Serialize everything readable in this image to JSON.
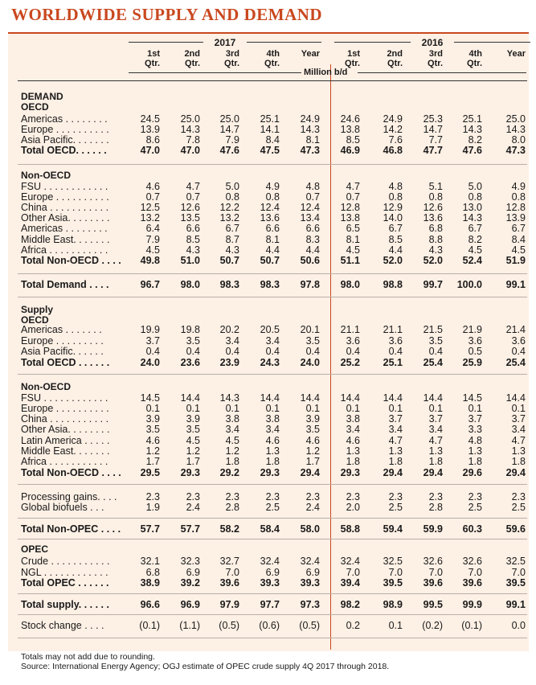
{
  "title": "WORLDWIDE SUPPLY AND DEMAND",
  "headers": {
    "year_2017": "2017",
    "year_2016": "2016",
    "unit": "Million b/d",
    "quarters": [
      "1st\nQtr.",
      "2nd\nQtr.",
      "3rd\nQtr.",
      "4th\nQtr.",
      "Year"
    ]
  },
  "sections": {
    "demand": "DEMAND",
    "oecd": "OECD",
    "non_oecd": "Non-OECD",
    "supply": "Supply",
    "supply_oecd": "OECD",
    "supply_non_oecd": "Non-OECD",
    "opec": "OPEC"
  },
  "rows": [
    {
      "label": "Americas . . . . . . . .",
      "values": [
        "24.5",
        "25.0",
        "25.0",
        "25.1",
        "24.9",
        "24.6",
        "24.9",
        "25.3",
        "25.1",
        "25.0"
      ],
      "bold": false
    },
    {
      "label": "Europe . . . . . . . . . .",
      "values": [
        "13.9",
        "14.3",
        "14.7",
        "14.1",
        "14.3",
        "13.8",
        "14.2",
        "14.7",
        "14.3",
        "14.3"
      ],
      "bold": false
    },
    {
      "label": "Asia Pacific. . . . . . .",
      "values": [
        "8.6",
        "7.8",
        "7.9",
        "8.4",
        "8.1",
        "8.5",
        "7.6",
        "7.7",
        "8.2",
        "8.0"
      ],
      "bold": false
    },
    {
      "label": "Total OECD. . . . . .",
      "values": [
        "47.0",
        "47.0",
        "47.6",
        "47.5",
        "47.3",
        "46.9",
        "46.8",
        "47.7",
        "47.6",
        "47.3"
      ],
      "bold": true
    },
    {
      "label": "FSU . . . . . . . . . . . .",
      "values": [
        "4.6",
        "4.7",
        "5.0",
        "4.9",
        "4.8",
        "4.7",
        "4.8",
        "5.1",
        "5.0",
        "4.9"
      ],
      "bold": false
    },
    {
      "label": "Europe . . . . . . . . . .",
      "values": [
        "0.7",
        "0.7",
        "0.8",
        "0.8",
        "0.7",
        "0.7",
        "0.8",
        "0.8",
        "0.8",
        "0.8"
      ],
      "bold": false
    },
    {
      "label": "China . . . . . . . . . . .",
      "values": [
        "12.5",
        "12.6",
        "12.2",
        "12.4",
        "12.4",
        "12.8",
        "12.9",
        "12.6",
        "13.0",
        "12.8"
      ],
      "bold": false
    },
    {
      "label": "Other Asia. . . . . . . .",
      "values": [
        "13.2",
        "13.5",
        "13.2",
        "13.6",
        "13.4",
        "13.8",
        "14.0",
        "13.6",
        "14.3",
        "13.9"
      ],
      "bold": false
    },
    {
      "label": "Americas . . . . . . . .",
      "values": [
        "6.4",
        "6.6",
        "6.7",
        "6.6",
        "6.6",
        "6.5",
        "6.7",
        "6.8",
        "6.7",
        "6.7"
      ],
      "bold": false
    },
    {
      "label": "Middle East. . . . . . .",
      "values": [
        "7.9",
        "8.5",
        "8.7",
        "8.1",
        "8.3",
        "8.1",
        "8.5",
        "8.8",
        "8.2",
        "8.4"
      ],
      "bold": false
    },
    {
      "label": "Africa . . . . . . . . . . .",
      "values": [
        "4.5",
        "4.3",
        "4.3",
        "4.4",
        "4.4",
        "4.5",
        "4.4",
        "4.3",
        "4.5",
        "4.5"
      ],
      "bold": false
    },
    {
      "label": "Total Non-OECD . . . .",
      "values": [
        "49.8",
        "51.0",
        "50.7",
        "50.7",
        "50.6",
        "51.1",
        "52.0",
        "52.0",
        "52.4",
        "51.9"
      ],
      "bold": true
    },
    {
      "label": "Total Demand  . . . .",
      "values": [
        "96.7",
        "98.0",
        "98.3",
        "98.3",
        "97.8",
        "98.0",
        "98.8",
        "99.7",
        "100.0",
        "99.1"
      ],
      "bold": true
    },
    {
      "label": "Americas . . . . . . .",
      "values": [
        "19.9",
        "19.8",
        "20.2",
        "20.5",
        "20.1",
        "21.1",
        "21.1",
        "21.5",
        "21.9",
        "21.4"
      ],
      "bold": false
    },
    {
      "label": "Europe . . . . . . . . .",
      "values": [
        "3.7",
        "3.5",
        "3.4",
        "3.4",
        "3.5",
        "3.6",
        "3.6",
        "3.5",
        "3.6",
        "3.6"
      ],
      "bold": false
    },
    {
      "label": "Asia Pacific. . . . . .",
      "values": [
        "0.4",
        "0.4",
        "0.4",
        "0.4",
        "0.4",
        "0.4",
        "0.4",
        "0.4",
        "0.5",
        "0.4"
      ],
      "bold": false
    },
    {
      "label": "Total OECD . . . . . .",
      "values": [
        "24.0",
        "23.6",
        "23.9",
        "24.3",
        "24.0",
        "25.2",
        "25.1",
        "25.4",
        "25.9",
        "25.4"
      ],
      "bold": true
    },
    {
      "label": "FSU . . . . . . . . . . . .",
      "values": [
        "14.5",
        "14.4",
        "14.3",
        "14.4",
        "14.4",
        "14.4",
        "14.4",
        "14.4",
        "14.5",
        "14.4"
      ],
      "bold": false
    },
    {
      "label": "Europe . . . . . . . . . .",
      "values": [
        "0.1",
        "0.1",
        "0.1",
        "0.1",
        "0.1",
        "0.1",
        "0.1",
        "0.1",
        "0.1",
        "0.1"
      ],
      "bold": false
    },
    {
      "label": "China . . . . . . . . . . .",
      "values": [
        "3.9",
        "3.9",
        "3.8",
        "3.8",
        "3.9",
        "3.8",
        "3.7",
        "3.7",
        "3.7",
        "3.7"
      ],
      "bold": false
    },
    {
      "label": "Other Asia. . . . . . . .",
      "values": [
        "3.5",
        "3.5",
        "3.4",
        "3.4",
        "3.5",
        "3.4",
        "3.4",
        "3.4",
        "3.3",
        "3.4"
      ],
      "bold": false
    },
    {
      "label": "Latin America . . . . .",
      "values": [
        "4.6",
        "4.5",
        "4.5",
        "4.6",
        "4.6",
        "4.6",
        "4.7",
        "4.7",
        "4.8",
        "4.7"
      ],
      "bold": false
    },
    {
      "label": "Middle East. . . . . . .",
      "values": [
        "1.2",
        "1.2",
        "1.2",
        "1.3",
        "1.2",
        "1.3",
        "1.3",
        "1.3",
        "1.3",
        "1.3"
      ],
      "bold": false
    },
    {
      "label": "Africa . . . . . . . . . . .",
      "values": [
        "1.7",
        "1.7",
        "1.8",
        "1.8",
        "1.7",
        "1.8",
        "1.8",
        "1.8",
        "1.8",
        "1.8"
      ],
      "bold": false
    },
    {
      "label": "Total Non-OECD . . . .",
      "values": [
        "29.5",
        "29.3",
        "29.2",
        "29.3",
        "29.4",
        "29.3",
        "29.4",
        "29.4",
        "29.6",
        "29.4"
      ],
      "bold": true
    },
    {
      "label": "Processing gains. . . .",
      "values": [
        "2.3",
        "2.3",
        "2.3",
        "2.3",
        "2.3",
        "2.3",
        "2.3",
        "2.3",
        "2.3",
        "2.3"
      ],
      "bold": false
    },
    {
      "label": "Global biofuels . . .",
      "values": [
        "1.9",
        "2.4",
        "2.8",
        "2.5",
        "2.4",
        "2.0",
        "2.5",
        "2.8",
        "2.5",
        "2.5"
      ],
      "bold": false
    },
    {
      "label": "Total Non-OPEC . . . .",
      "values": [
        "57.7",
        "57.7",
        "58.2",
        "58.4",
        "58.0",
        "58.8",
        "59.4",
        "59.9",
        "60.3",
        "59.6"
      ],
      "bold": true
    },
    {
      "label": "Crude . . . . . . . . . . .",
      "values": [
        "32.1",
        "32.3",
        "32.7",
        "32.4",
        "32.4",
        "32.4",
        "32.5",
        "32.6",
        "32.6",
        "32.5"
      ],
      "bold": false
    },
    {
      "label": "NGL . . . . . . . . . . . .",
      "values": [
        "6.8",
        "6.9",
        "7.0",
        "6.9",
        "6.9",
        "7.0",
        "7.0",
        "7.0",
        "7.0",
        "7.0"
      ],
      "bold": false
    },
    {
      "label": "Total OPEC . . . . . .",
      "values": [
        "38.9",
        "39.2",
        "39.6",
        "39.3",
        "39.3",
        "39.4",
        "39.5",
        "39.6",
        "39.6",
        "39.5"
      ],
      "bold": true
    },
    {
      "label": "Total supply. . . . . .",
      "values": [
        "96.6",
        "96.9",
        "97.9",
        "97.7",
        "97.3",
        "98.2",
        "98.9",
        "99.5",
        "99.9",
        "99.1"
      ],
      "bold": true
    },
    {
      "label": "Stock change . . . .",
      "values": [
        "(0.1)",
        "(1.1)",
        "(0.5)",
        "(0.6)",
        "(0.5)",
        "0.2",
        "0.1",
        "(0.2)",
        "(0.1)",
        "0.0"
      ],
      "bold": false
    }
  ],
  "footnotes": [
    "Totals may not add due to rounding.",
    "Source: International Energy Agency; OGJ estimate of OPEC crude supply 4Q 2017 through 2018."
  ]
}
